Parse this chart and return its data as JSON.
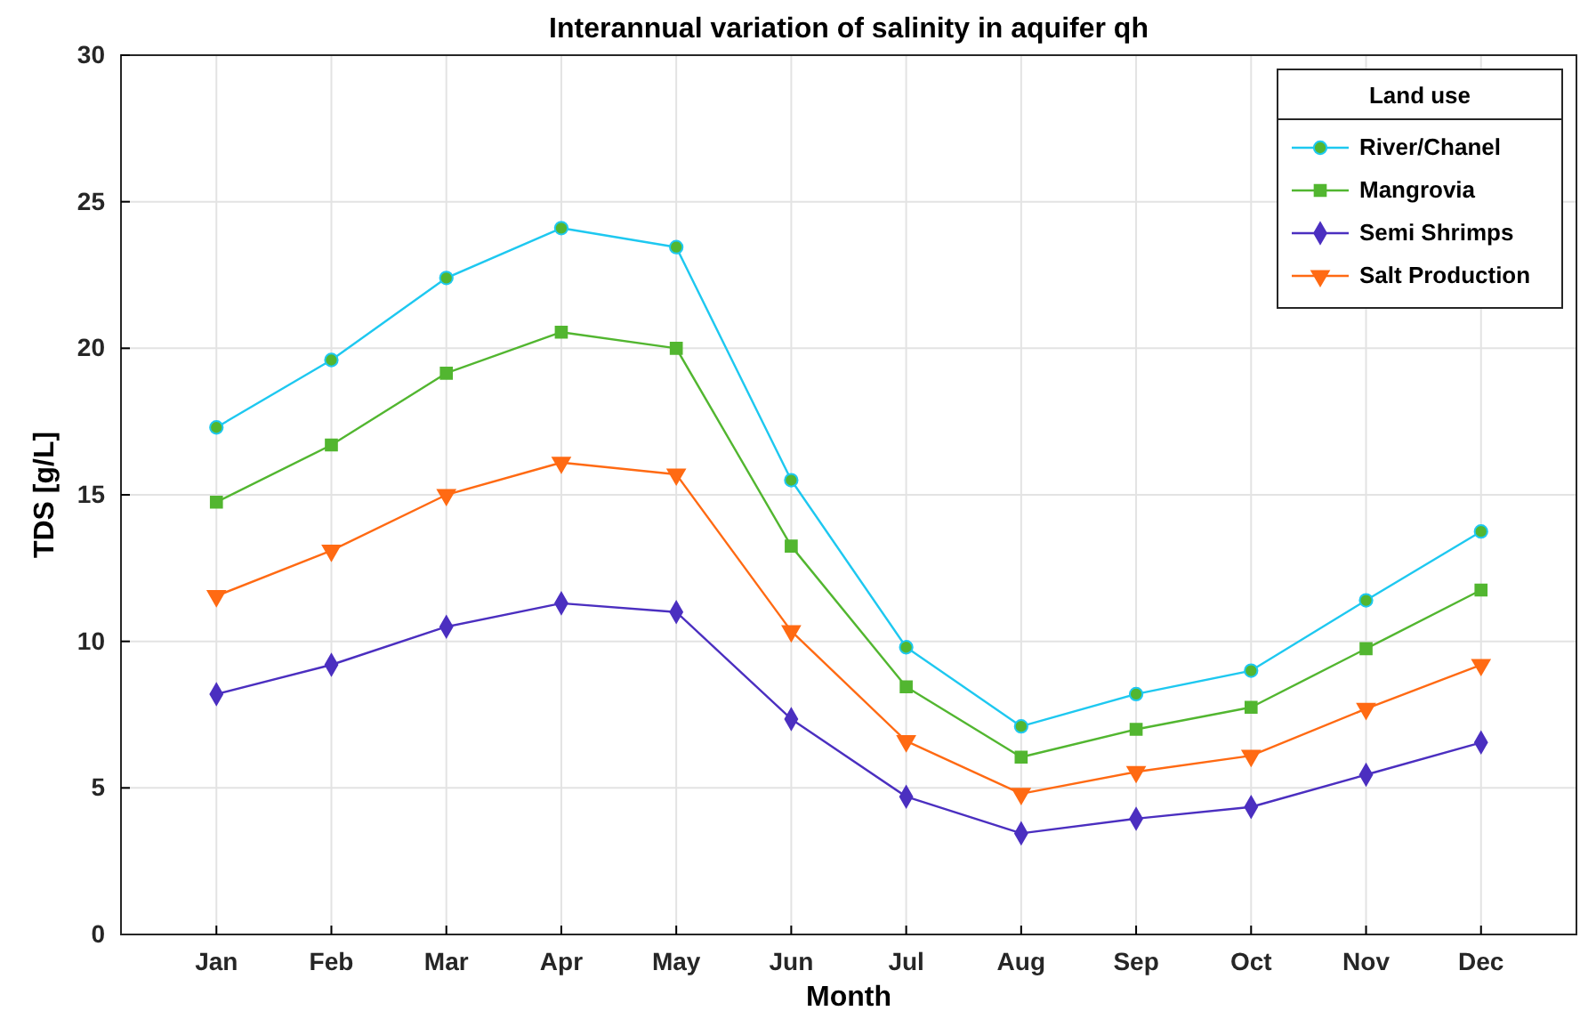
{
  "chart_data": {
    "type": "line",
    "title": "Interannual variation of salinity in aquifer qh",
    "xlabel": "Month",
    "ylabel": "TDS [g/L]",
    "legend_title": "Land use",
    "legend": "top right",
    "grid": true,
    "line_style": "solid",
    "categories": [
      "Jan",
      "Feb",
      "Mar",
      "Apr",
      "May",
      "Jun",
      "Jul",
      "Aug",
      "Sep",
      "Oct",
      "Nov",
      "Dec"
    ],
    "ylim": [
      0,
      30
    ],
    "yticks": [
      0,
      5,
      10,
      15,
      20,
      25,
      30
    ],
    "series": [
      {
        "name": "River/Chanel",
        "color": "#1ec8f0",
        "marker": "circle",
        "values": [
          17.3,
          19.6,
          22.4,
          24.1,
          23.45,
          15.5,
          9.8,
          7.1,
          8.2,
          9.0,
          11.4,
          13.75
        ]
      },
      {
        "name": "Mangrovia",
        "color": "#52b630",
        "marker": "square",
        "values": [
          14.75,
          16.7,
          19.15,
          20.55,
          20.0,
          13.25,
          8.45,
          6.05,
          7.0,
          7.75,
          9.75,
          11.75
        ]
      },
      {
        "name": "Semi Shrimps",
        "color": "#4b2fc0",
        "marker": "diamond",
        "values": [
          8.2,
          9.2,
          10.5,
          11.3,
          11.0,
          7.35,
          4.7,
          3.45,
          3.95,
          4.35,
          5.45,
          6.55
        ]
      },
      {
        "name": "Salt Production",
        "color": "#ff6a13",
        "marker": "triangle",
        "values": [
          11.55,
          13.1,
          15.0,
          16.1,
          15.7,
          10.35,
          6.6,
          4.8,
          5.55,
          6.1,
          7.7,
          9.2
        ]
      }
    ]
  }
}
